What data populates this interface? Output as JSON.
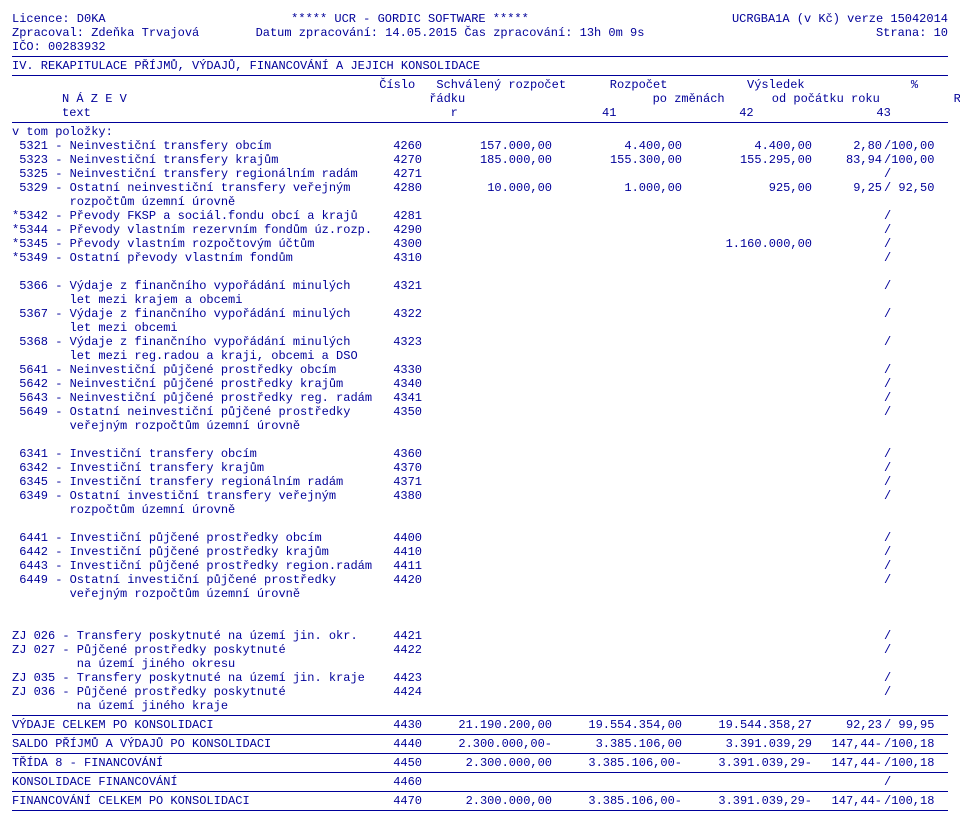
{
  "header": {
    "licence": "Licence: D0KA",
    "software": "*****  UCR - GORDIC SOFTWARE *****",
    "version": "UCRGBA1A (v Kč) verze 15042014",
    "zpracoval": "Zpracoval: Zdeňka Trvajová",
    "datum": "Datum zpracování: 14.05.2015 Čas zpracování: 13h 0m 9s",
    "strana": "Strana:     10",
    "ico": "IČO: 00283932",
    "section": "IV. REKAPITULACE PŘÍJMŮ, VÝDAJŮ, FINANCOVÁNÍ A JEJICH KONSOLIDACE"
  },
  "table_header": {
    "nazev": "N Á Z E V",
    "text": "text",
    "cislo": "Číslo",
    "radku_lbl": "řádku",
    "r": "r",
    "schvaleny": "Schválený rozpočet",
    "c41": "41",
    "rozpocet": "Rozpočet",
    "pozmenach": "po změnách",
    "c42": "42",
    "vysledek": "Výsledek",
    "odpocatku": "od počátku roku",
    "c43": "43",
    "pct": "%",
    "rs": "RS",
    "ru": "RU"
  },
  "section_label": "v tom položky:",
  "rows1": [
    {
      "text": " 5321 - Neinvestiční transfery obcím",
      "r": "4260",
      "c41": "157.000,00",
      "c42": "4.400,00",
      "c43": "4.400,00",
      "rs": "2,80",
      "ru": "/100,00"
    },
    {
      "text": " 5323 - Neinvestiční transfery krajům",
      "r": "4270",
      "c41": "185.000,00",
      "c42": "155.300,00",
      "c43": "155.295,00",
      "rs": "83,94",
      "ru": "/100,00"
    },
    {
      "text": " 5325 - Neinvestiční transfery regionálním radám",
      "r": "4271",
      "c41": "",
      "c42": "",
      "c43": "",
      "rs": "",
      "ru": "/"
    },
    {
      "text": " 5329 - Ostatní neinvestiční transfery veřejným",
      "r": "4280",
      "c41": "10.000,00",
      "c42": "1.000,00",
      "c43": "925,00",
      "rs": "9,25",
      "ru": "/ 92,50"
    },
    {
      "text": "        rozpočtům územní úrovně",
      "r": "",
      "c41": "",
      "c42": "",
      "c43": "",
      "rs": "",
      "ru": ""
    },
    {
      "text": "*5342 - Převody FKSP a sociál.fondu obcí a krajů",
      "r": "4281",
      "c41": "",
      "c42": "",
      "c43": "",
      "rs": "",
      "ru": "/"
    },
    {
      "text": "*5344 - Převody vlastním rezervním fondům úz.rozp.",
      "r": "4290",
      "c41": "",
      "c42": "",
      "c43": "",
      "rs": "",
      "ru": "/"
    },
    {
      "text": "*5345 - Převody vlastním rozpočtovým účtům",
      "r": "4300",
      "c41": "",
      "c42": "",
      "c43": "1.160.000,00",
      "rs": "",
      "ru": "/"
    },
    {
      "text": "*5349 - Ostatní převody vlastním fondům",
      "r": "4310",
      "c41": "",
      "c42": "",
      "c43": "",
      "rs": "",
      "ru": "/"
    },
    {
      "text": " ",
      "r": "",
      "c41": "",
      "c42": "",
      "c43": "",
      "rs": "",
      "ru": ""
    },
    {
      "text": " 5366 - Výdaje z finančního vypořádání minulých",
      "r": "4321",
      "c41": "",
      "c42": "",
      "c43": "",
      "rs": "",
      "ru": "/"
    },
    {
      "text": "        let mezi krajem a obcemi",
      "r": "",
      "c41": "",
      "c42": "",
      "c43": "",
      "rs": "",
      "ru": ""
    },
    {
      "text": " 5367 - Výdaje z finančního vypořádání minulých",
      "r": "4322",
      "c41": "",
      "c42": "",
      "c43": "",
      "rs": "",
      "ru": "/"
    },
    {
      "text": "        let mezi obcemi",
      "r": "",
      "c41": "",
      "c42": "",
      "c43": "",
      "rs": "",
      "ru": ""
    },
    {
      "text": " 5368 - Výdaje z finančního vypořádání minulých",
      "r": "4323",
      "c41": "",
      "c42": "",
      "c43": "",
      "rs": "",
      "ru": "/"
    },
    {
      "text": "        let mezi reg.radou a kraji, obcemi a DSO",
      "r": "",
      "c41": "",
      "c42": "",
      "c43": "",
      "rs": "",
      "ru": ""
    },
    {
      "text": " 5641 - Neinvestiční půjčené prostředky obcím",
      "r": "4330",
      "c41": "",
      "c42": "",
      "c43": "",
      "rs": "",
      "ru": "/"
    },
    {
      "text": " 5642 - Neinvestiční půjčené prostředky krajům",
      "r": "4340",
      "c41": "",
      "c42": "",
      "c43": "",
      "rs": "",
      "ru": "/"
    },
    {
      "text": " 5643 - Neinvestiční půjčené prostředky reg. radám",
      "r": "4341",
      "c41": "",
      "c42": "",
      "c43": "",
      "rs": "",
      "ru": "/"
    },
    {
      "text": " 5649 - Ostatní neinvestiční půjčené prostředky",
      "r": "4350",
      "c41": "",
      "c42": "",
      "c43": "",
      "rs": "",
      "ru": "/"
    },
    {
      "text": "        veřejným rozpočtům územní úrovně",
      "r": "",
      "c41": "",
      "c42": "",
      "c43": "",
      "rs": "",
      "ru": ""
    },
    {
      "text": " ",
      "r": "",
      "c41": "",
      "c42": "",
      "c43": "",
      "rs": "",
      "ru": ""
    },
    {
      "text": " 6341 - Investiční transfery obcím",
      "r": "4360",
      "c41": "",
      "c42": "",
      "c43": "",
      "rs": "",
      "ru": "/"
    },
    {
      "text": " 6342 - Investiční transfery krajům",
      "r": "4370",
      "c41": "",
      "c42": "",
      "c43": "",
      "rs": "",
      "ru": "/"
    },
    {
      "text": " 6345 - Investiční transfery regionálním radám",
      "r": "4371",
      "c41": "",
      "c42": "",
      "c43": "",
      "rs": "",
      "ru": "/"
    },
    {
      "text": " 6349 - Ostatní investiční transfery veřejným",
      "r": "4380",
      "c41": "",
      "c42": "",
      "c43": "",
      "rs": "",
      "ru": "/"
    },
    {
      "text": "        rozpočtům územní úrovně",
      "r": "",
      "c41": "",
      "c42": "",
      "c43": "",
      "rs": "",
      "ru": ""
    },
    {
      "text": " ",
      "r": "",
      "c41": "",
      "c42": "",
      "c43": "",
      "rs": "",
      "ru": ""
    },
    {
      "text": " 6441 - Investiční půjčené prostředky obcím",
      "r": "4400",
      "c41": "",
      "c42": "",
      "c43": "",
      "rs": "",
      "ru": "/"
    },
    {
      "text": " 6442 - Investiční půjčené prostředky krajům",
      "r": "4410",
      "c41": "",
      "c42": "",
      "c43": "",
      "rs": "",
      "ru": "/"
    },
    {
      "text": " 6443 - Investiční půjčené prostředky region.radám",
      "r": "4411",
      "c41": "",
      "c42": "",
      "c43": "",
      "rs": "",
      "ru": "/"
    },
    {
      "text": " 6449 - Ostatní investiční půjčené prostředky",
      "r": "4420",
      "c41": "",
      "c42": "",
      "c43": "",
      "rs": "",
      "ru": "/"
    },
    {
      "text": "        veřejným rozpočtům územní úrovně",
      "r": "",
      "c41": "",
      "c42": "",
      "c43": "",
      "rs": "",
      "ru": ""
    },
    {
      "text": " ",
      "r": "",
      "c41": "",
      "c42": "",
      "c43": "",
      "rs": "",
      "ru": ""
    },
    {
      "text": " ",
      "r": "",
      "c41": "",
      "c42": "",
      "c43": "",
      "rs": "",
      "ru": ""
    },
    {
      "text": "ZJ 026 - Transfery poskytnuté na území jin. okr.",
      "r": "4421",
      "c41": "",
      "c42": "",
      "c43": "",
      "rs": "",
      "ru": "/"
    },
    {
      "text": "ZJ 027 - Půjčené prostředky poskytnuté",
      "r": "4422",
      "c41": "",
      "c42": "",
      "c43": "",
      "rs": "",
      "ru": "/"
    },
    {
      "text": "         na území jiného okresu",
      "r": "",
      "c41": "",
      "c42": "",
      "c43": "",
      "rs": "",
      "ru": ""
    },
    {
      "text": "ZJ 035 - Transfery poskytnuté na území jin. kraje",
      "r": "4423",
      "c41": "",
      "c42": "",
      "c43": "",
      "rs": "",
      "ru": "/"
    },
    {
      "text": "ZJ 036 - Půjčené prostředky poskytnuté",
      "r": "4424",
      "c41": "",
      "c42": "",
      "c43": "",
      "rs": "",
      "ru": "/"
    },
    {
      "text": "         na území jiného kraje",
      "r": "",
      "c41": "",
      "c42": "",
      "c43": "",
      "rs": "",
      "ru": ""
    }
  ],
  "totals": [
    {
      "text": "VÝDAJE CELKEM PO KONSOLIDACI",
      "r": "4430",
      "c41": "21.190.200,00",
      "c42": "19.554.354,00",
      "c43": "19.544.358,27",
      "rs": "92,23",
      "ru": "/ 99,95"
    },
    {
      "text": "SALDO PŘÍJMŮ A VÝDAJŮ PO KONSOLIDACI",
      "r": "4440",
      "c41": "2.300.000,00-",
      "c42": "3.385.106,00",
      "c43": "3.391.039,29",
      "rs": "147,44-",
      "ru": "/100,18"
    },
    {
      "text": "TŘÍDA 8 - FINANCOVÁNÍ",
      "r": "4450",
      "c41": "2.300.000,00",
      "c42": "3.385.106,00-",
      "c43": "3.391.039,29-",
      "rs": "147,44-",
      "ru": "/100,18"
    },
    {
      "text": "KONSOLIDACE FINANCOVÁNÍ",
      "r": "4460",
      "c41": "",
      "c42": "",
      "c43": "",
      "rs": "",
      "ru": "/"
    },
    {
      "text": "FINANCOVÁNÍ CELKEM PO KONSOLIDACI",
      "r": "4470",
      "c41": "2.300.000,00",
      "c42": "3.385.106,00-",
      "c43": "3.391.039,29-",
      "rs": "147,44-",
      "ru": "/100,18"
    }
  ]
}
